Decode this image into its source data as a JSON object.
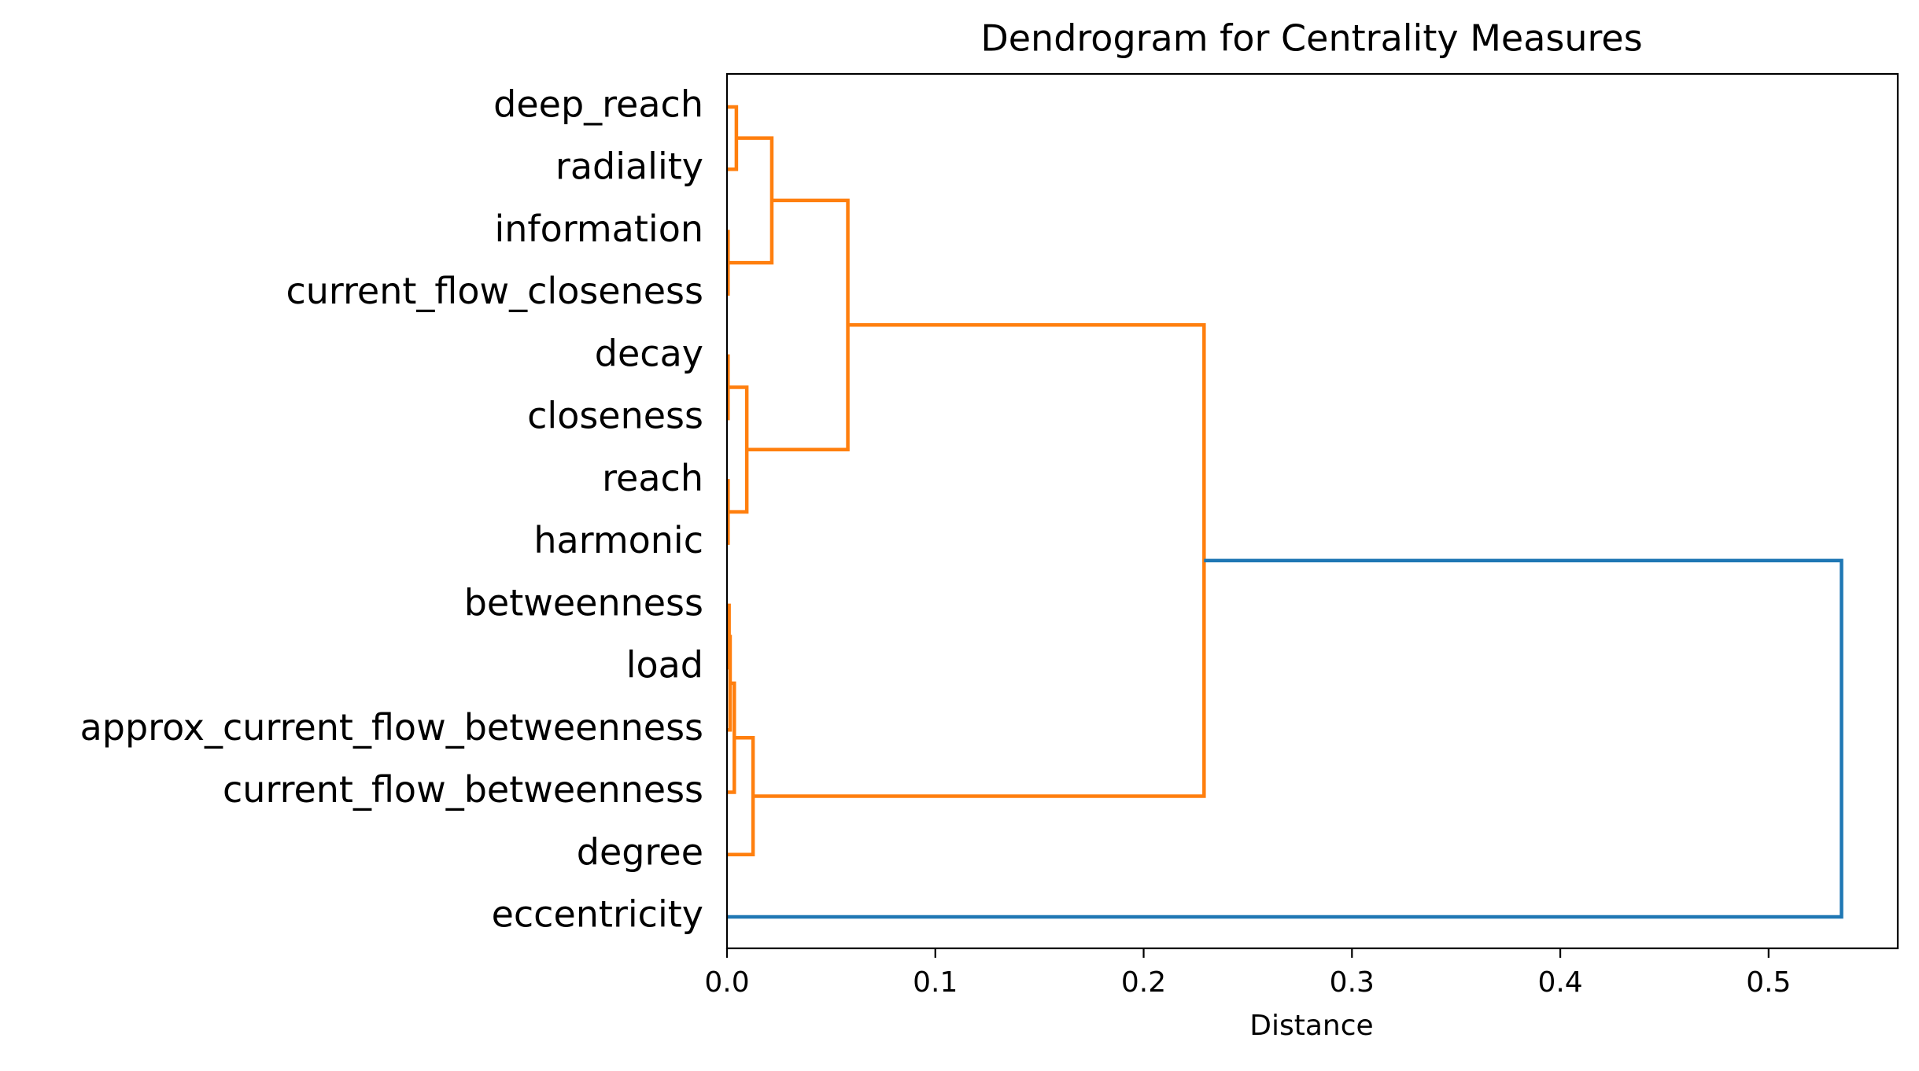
{
  "chart_data": {
    "type": "dendrogram",
    "orientation": "left",
    "title": "Dendrogram for Centrality Measures",
    "xlabel": "Distance",
    "ylabel": "",
    "xlim": [
      0,
      0.562
    ],
    "xticks": [
      {
        "value": 0.0,
        "label": "0.0"
      },
      {
        "value": 0.1,
        "label": "0.1"
      },
      {
        "value": 0.2,
        "label": "0.2"
      },
      {
        "value": 0.3,
        "label": "0.3"
      },
      {
        "value": 0.4,
        "label": "0.4"
      },
      {
        "value": 0.5,
        "label": "0.5"
      }
    ],
    "grid": false,
    "colors": {
      "cluster_1": "#ff7f0e",
      "root": "#1f77b4"
    },
    "leaves": [
      "deep_reach",
      "radiality",
      "information",
      "current_flow_closeness",
      "decay",
      "closeness",
      "reach",
      "harmonic",
      "betweenness",
      "load",
      "approx_current_flow_betweenness",
      "current_flow_betweenness",
      "degree",
      "eccentricity"
    ],
    "merges": [
      {
        "left": "deep_reach",
        "right": "radiality",
        "distance": 0.0045,
        "color": "cluster_1"
      },
      {
        "left": "information",
        "right": "current_flow_closeness",
        "distance": 0.0005,
        "color": "cluster_1"
      },
      {
        "left": 0,
        "right": 1,
        "distance": 0.0215,
        "color": "cluster_1"
      },
      {
        "left": "decay",
        "right": "closeness",
        "distance": 0.0005,
        "color": "cluster_1"
      },
      {
        "left": "reach",
        "right": "harmonic",
        "distance": 0.0005,
        "color": "cluster_1"
      },
      {
        "left": 3,
        "right": 4,
        "distance": 0.0095,
        "color": "cluster_1"
      },
      {
        "left": 2,
        "right": 5,
        "distance": 0.058,
        "color": "cluster_1"
      },
      {
        "left": "betweenness",
        "right": "load",
        "distance": 0.001,
        "color": "cluster_1"
      },
      {
        "left": 7,
        "right": "approx_current_flow_betweenness",
        "distance": 0.0015,
        "color": "cluster_1"
      },
      {
        "left": 8,
        "right": "current_flow_betweenness",
        "distance": 0.0035,
        "color": "cluster_1"
      },
      {
        "left": 9,
        "right": "degree",
        "distance": 0.0125,
        "color": "cluster_1"
      },
      {
        "left": 6,
        "right": 10,
        "distance": 0.229,
        "color": "cluster_1"
      },
      {
        "left": 11,
        "right": "eccentricity",
        "distance": 0.535,
        "color": "root"
      }
    ]
  }
}
